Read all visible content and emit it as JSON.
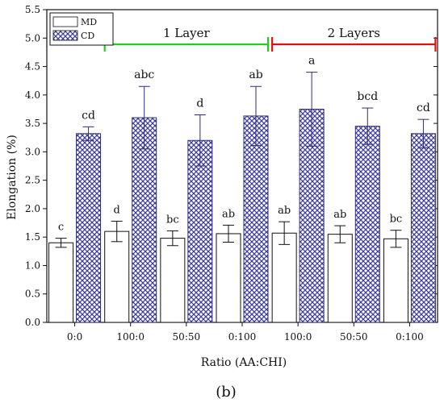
{
  "chart_data": {
    "type": "bar",
    "ylabel": "Elongation (%)",
    "xlabel": "Ratio (AA:CHI)",
    "panel_label": "(b)",
    "ylim": [
      0,
      5.5
    ],
    "yticks": [
      "0.0",
      "0.5",
      "1.0",
      "1.5",
      "2.0",
      "2.5",
      "3.0",
      "3.5",
      "4.0",
      "4.5",
      "5.0",
      "5.5"
    ],
    "categories": [
      "0:0",
      "100:0",
      "50:50",
      "0:100",
      "100:0",
      "50:50",
      "0:100"
    ],
    "legend_position": "top-left",
    "grid": false,
    "series": [
      {
        "name": "MD",
        "pattern": "plain",
        "color": "#ffffff",
        "values": [
          1.4,
          1.6,
          1.48,
          1.56,
          1.57,
          1.55,
          1.47
        ],
        "errors": [
          0.08,
          0.18,
          0.13,
          0.15,
          0.2,
          0.15,
          0.15
        ],
        "labels": [
          "c",
          "d",
          "bc",
          "ab",
          "ab",
          "ab",
          "bc"
        ]
      },
      {
        "name": "CD",
        "pattern": "crosshatch",
        "color": "#3f3f9a",
        "values": [
          3.32,
          3.6,
          3.2,
          3.63,
          3.75,
          3.45,
          3.32
        ],
        "errors": [
          0.12,
          0.55,
          0.45,
          0.52,
          0.65,
          0.32,
          0.25
        ],
        "labels": [
          "cd",
          "abc",
          "d",
          "ab",
          "a",
          "bcd",
          "cd"
        ]
      }
    ],
    "annotations": [
      {
        "text": "1 Layer",
        "color": "#22cc22",
        "from_category": 1,
        "to_category": 3
      },
      {
        "text": "2 Layers",
        "color": "#dd1111",
        "from_category": 4,
        "to_category": 6
      }
    ]
  }
}
